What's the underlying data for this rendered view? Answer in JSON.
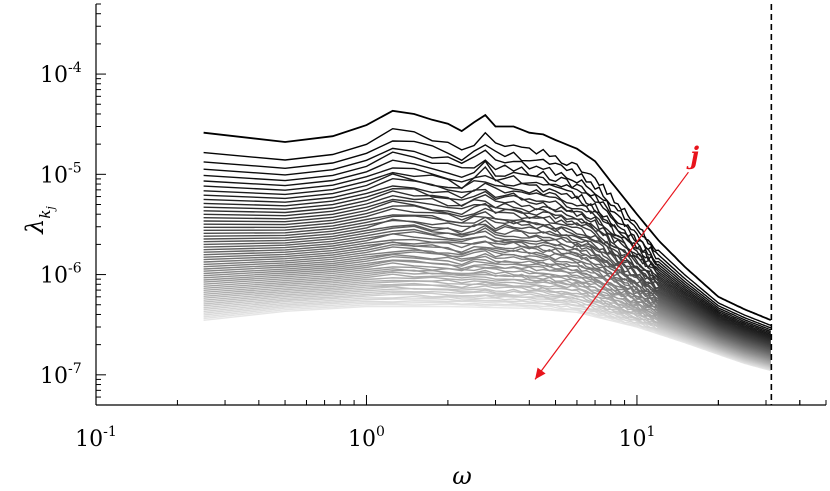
{
  "chart_data": {
    "type": "line",
    "xscale": "log",
    "yscale": "log",
    "xlim": [
      0.1,
      50
    ],
    "ylim": [
      5e-08,
      0.0005
    ],
    "xlabel": "ω",
    "ylabel": "λ",
    "ylabel_sub": "k",
    "ylabel_subsub": "j",
    "x_ticks": [
      {
        "base": "10",
        "exp": "-1",
        "value": 0.1
      },
      {
        "base": "10",
        "exp": "0",
        "value": 1
      },
      {
        "base": "10",
        "exp": "1",
        "value": 10
      }
    ],
    "y_ticks": [
      {
        "base": "10",
        "exp": "-7",
        "value": 1e-07
      },
      {
        "base": "10",
        "exp": "-6",
        "value": 1e-06
      },
      {
        "base": "10",
        "exp": "-5",
        "value": 1e-05
      },
      {
        "base": "10",
        "exp": "-4",
        "value": 0.0001
      }
    ],
    "vline": {
      "x": 31.4,
      "style": "dashed"
    },
    "annotation": {
      "text": "j",
      "color": "#e8141c",
      "arrow_from": [
        15.5,
        1.05e-05
      ],
      "arrow_to": [
        4.2,
        9e-08
      ]
    },
    "series_count": 60,
    "omega_min": 0.25,
    "omega_max": 31.4,
    "top_series": {
      "name": "j=1",
      "x": [
        0.25,
        0.5,
        0.75,
        1.0,
        1.25,
        1.5,
        1.75,
        2.0,
        2.25,
        2.5,
        2.75,
        3.0,
        3.5,
        4.0,
        4.5,
        5.0,
        6.0,
        7.0,
        8.0,
        10.0,
        12.0,
        15.0,
        20.0,
        25.0,
        31.4
      ],
      "values": [
        2.6e-05,
        2.1e-05,
        2.4e-05,
        3.1e-05,
        4.3e-05,
        4e-05,
        3.5e-05,
        3.2e-05,
        2.7e-05,
        3.3e-05,
        3.9e-05,
        3e-05,
        3e-05,
        2.6e-05,
        2.5e-05,
        2.2e-05,
        1.8e-05,
        1.35e-05,
        8.5e-06,
        4e-06,
        2.2e-06,
        1.2e-06,
        6e-07,
        4.5e-07,
        3.5e-07
      ]
    },
    "bottom_series": {
      "name": "j=60",
      "x": [
        0.25,
        0.5,
        1.0,
        2.0,
        4.0,
        6.0,
        10.0,
        15.0,
        20.0,
        25.0,
        31.4
      ],
      "values": [
        3.5e-07,
        4.3e-07,
        4.8e-07,
        4.8e-07,
        4.6e-07,
        4.2e-07,
        3e-07,
        2.1e-07,
        1.6e-07,
        1.3e-07,
        1.1e-07
      ]
    },
    "colors": {
      "dark": "#000000",
      "light": "#e6e6e6",
      "arrow": "#e8141c"
    }
  }
}
